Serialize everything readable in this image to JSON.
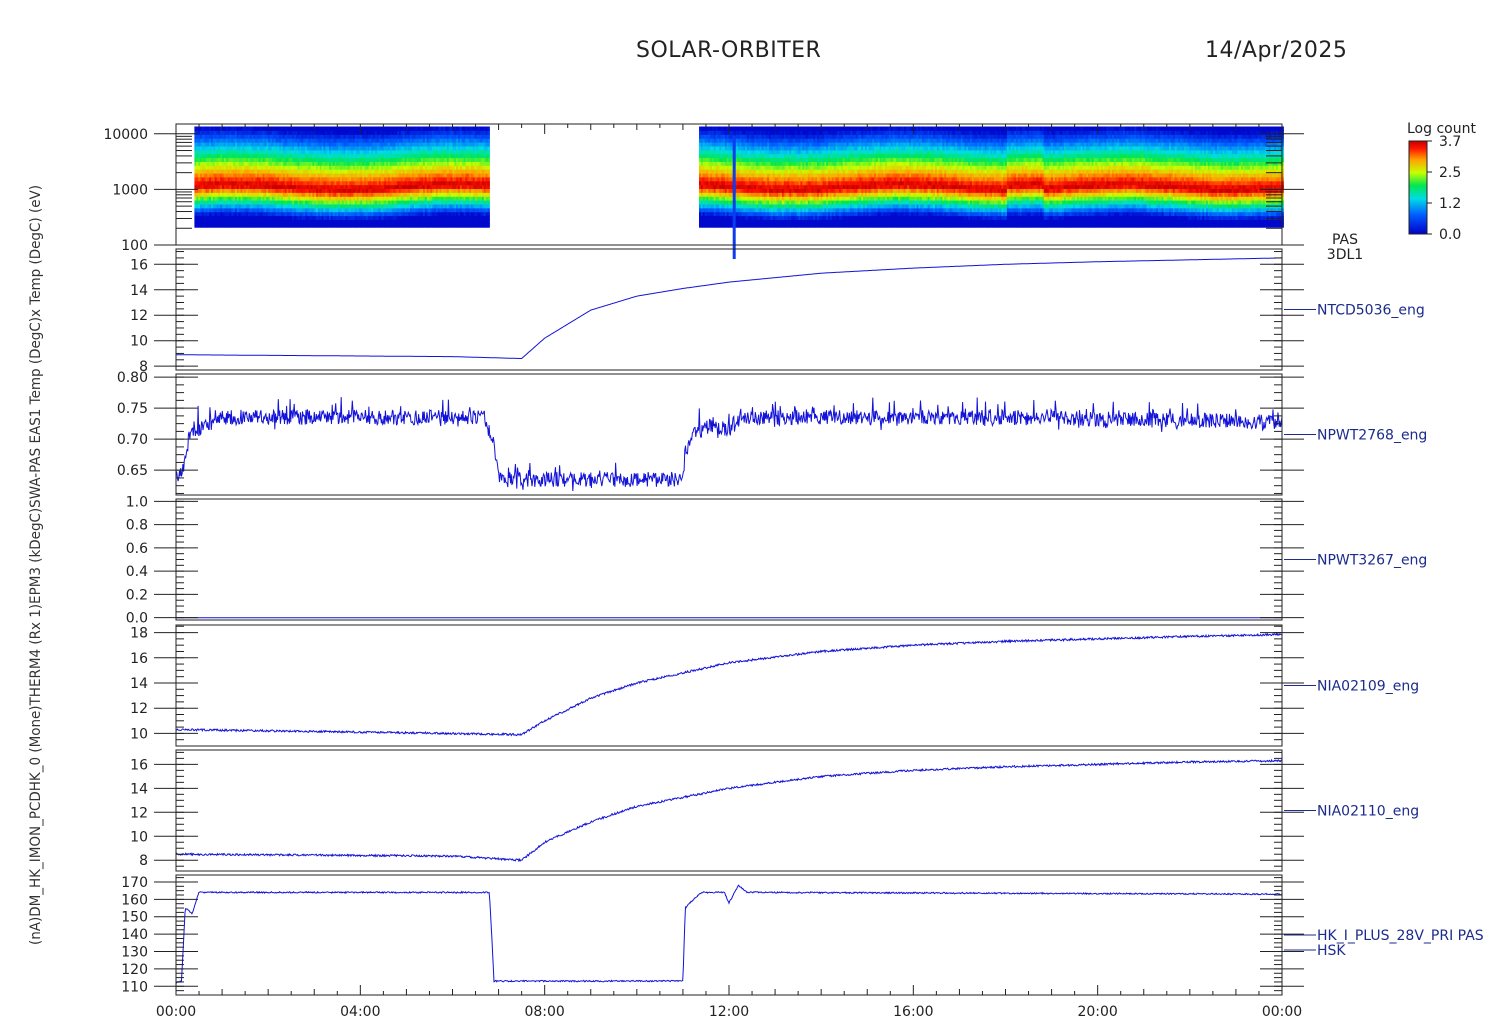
{
  "header": {
    "title": "SOLAR-ORBITER",
    "date": "14/Apr/2025"
  },
  "colorbar": {
    "title": "Log count",
    "ticks": [
      "3.7",
      "2.5",
      "1.2",
      "0.0"
    ]
  },
  "left_label": "(nA)DM_HK_IMON_PCDHK_0 (Mone)THERM4 (Rx 1)EPM3 (kDegC)SWA-PAS EAS1 Temp (DegC)x Temp (DegC) (eV)",
  "chart_data": [
    {
      "type": "heatmap",
      "instrument": [
        "PAS",
        "3DL1"
      ],
      "yscale": "log",
      "ylim": [
        100,
        15000
      ],
      "yticks": [
        "10000",
        "1000",
        "100"
      ],
      "colorbar_range": [
        0.0,
        3.7
      ],
      "data_intervals_hours": [
        [
          0.4,
          6.8
        ],
        [
          11.35,
          24.0
        ]
      ],
      "band_peak_eV": 1100
    },
    {
      "type": "line",
      "series_name": "NTCD5036_eng",
      "ylim": [
        7.7,
        17.2
      ],
      "yticks": [
        "16",
        "14",
        "12",
        "10",
        "8"
      ],
      "x": [
        0,
        2,
        4,
        6,
        7.5,
        8,
        9,
        10,
        11,
        12,
        14,
        16,
        18,
        20,
        22,
        24
      ],
      "y": [
        8.9,
        8.85,
        8.8,
        8.75,
        8.6,
        10.2,
        12.4,
        13.5,
        14.1,
        14.6,
        15.3,
        15.7,
        16.0,
        16.2,
        16.35,
        16.5
      ]
    },
    {
      "type": "line",
      "series_name": "NPWT2768_eng",
      "ylim": [
        0.61,
        0.805
      ],
      "yticks": [
        "0.80",
        "0.75",
        "0.70",
        "0.65"
      ],
      "x": [
        0,
        0.15,
        0.3,
        0.6,
        1,
        3,
        6.7,
        6.9,
        7.0,
        9,
        11.0,
        11.05,
        11.2,
        11.5,
        12.0,
        12.3,
        14,
        18,
        24
      ],
      "y": [
        0.64,
        0.65,
        0.71,
        0.72,
        0.735,
        0.735,
        0.735,
        0.69,
        0.635,
        0.635,
        0.635,
        0.68,
        0.705,
        0.72,
        0.715,
        0.735,
        0.735,
        0.735,
        0.728
      ]
    },
    {
      "type": "line",
      "series_name": "NPWT3267_eng",
      "ylim": [
        -0.02,
        1.02
      ],
      "yticks": [
        "1.0",
        "0.8",
        "0.6",
        "0.4",
        "0.2",
        "0.0"
      ],
      "x": [
        0,
        24
      ],
      "y": [
        0.0,
        0.0
      ]
    },
    {
      "type": "line",
      "series_name": "NIA02109_eng",
      "ylim": [
        9.0,
        18.6
      ],
      "yticks": [
        "18",
        "16",
        "14",
        "12",
        "10"
      ],
      "x": [
        0,
        2,
        4,
        6,
        7.5,
        8,
        9,
        10,
        12,
        14,
        16,
        18,
        20,
        22,
        24
      ],
      "y": [
        10.3,
        10.2,
        10.1,
        10.0,
        9.9,
        11.0,
        12.8,
        14.0,
        15.6,
        16.5,
        17.0,
        17.3,
        17.5,
        17.7,
        17.85
      ]
    },
    {
      "type": "line",
      "series_name": "NIA02110_eng",
      "ylim": [
        7.1,
        17.2
      ],
      "yticks": [
        "16",
        "14",
        "12",
        "10",
        "8"
      ],
      "x": [
        0,
        2,
        4,
        6,
        7.5,
        8,
        9,
        10,
        12,
        14,
        16,
        18,
        20,
        22,
        24
      ],
      "y": [
        8.5,
        8.45,
        8.4,
        8.35,
        8.0,
        9.5,
        11.2,
        12.5,
        14.0,
        15.0,
        15.5,
        15.8,
        16.0,
        16.2,
        16.3
      ]
    },
    {
      "type": "line",
      "series_name": "HK_I_PLUS_28V_PRI PAS HSK",
      "name_lines": [
        "HK_I_PLUS_28V_PRI PAS",
        "HSK"
      ],
      "ylim": [
        105,
        174
      ],
      "yticks": [
        "170",
        "160",
        "150",
        "140",
        "130",
        "120",
        "110"
      ],
      "x": [
        0,
        0.12,
        0.2,
        0.35,
        0.5,
        6.8,
        6.85,
        6.9,
        11.0,
        11.05,
        11.15,
        11.4,
        11.9,
        12.0,
        12.2,
        12.4,
        24
      ],
      "y": [
        112,
        113,
        155,
        152,
        164,
        164,
        140,
        113,
        113,
        155,
        158,
        164,
        164,
        158,
        168,
        164,
        163
      ]
    }
  ],
  "xaxis": {
    "range_hours": [
      0,
      24
    ],
    "tick_labels": [
      "00:00",
      "04:00",
      "08:00",
      "12:00",
      "16:00",
      "20:00",
      "00:00"
    ]
  }
}
